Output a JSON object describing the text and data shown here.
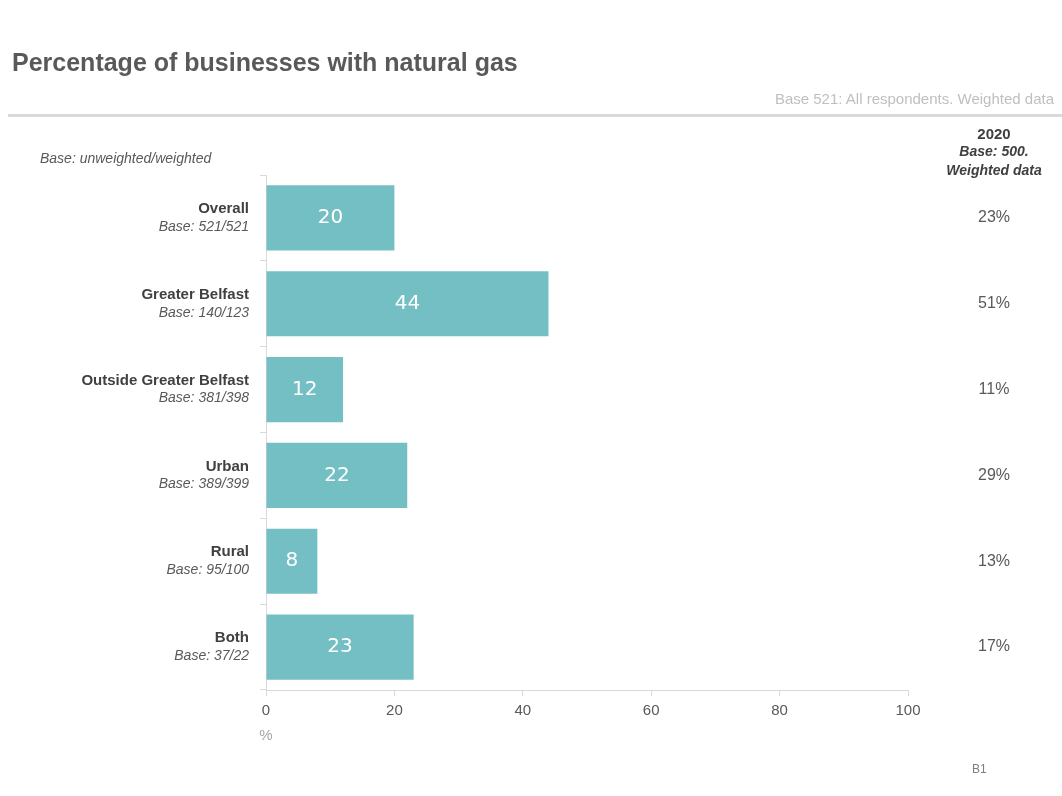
{
  "chart_data": {
    "type": "bar",
    "orientation": "horizontal",
    "title": "Percentage of businesses with natural gas",
    "subtitle": "Base 521: All respondents. Weighted data",
    "xlabel": "%",
    "categories": [
      "Overall\nBase: 521/521",
      "Greater Belfast\nBase: 140/123",
      "Outside Greater Belfast\nBase: 381/398",
      "Urban\nBase: 389/399",
      "Rural\nBase: 95/100",
      "Both\nBase: 37/22"
    ],
    "values": [
      20,
      44,
      12,
      22,
      8,
      23
    ],
    "color": "#74bfc4",
    "data_labels": true,
    "xlim": [
      0,
      100
    ],
    "xticks": [
      0,
      20,
      40,
      60,
      80,
      100
    ],
    "grid": false,
    "legend": false,
    "annotations": [
      "Base: unweighted/weighted",
      "2020",
      "Base: 500.\nWeighted data",
      "B1",
      "23%",
      "51%",
      "11%",
      "29%",
      "13%",
      "17%"
    ]
  }
}
